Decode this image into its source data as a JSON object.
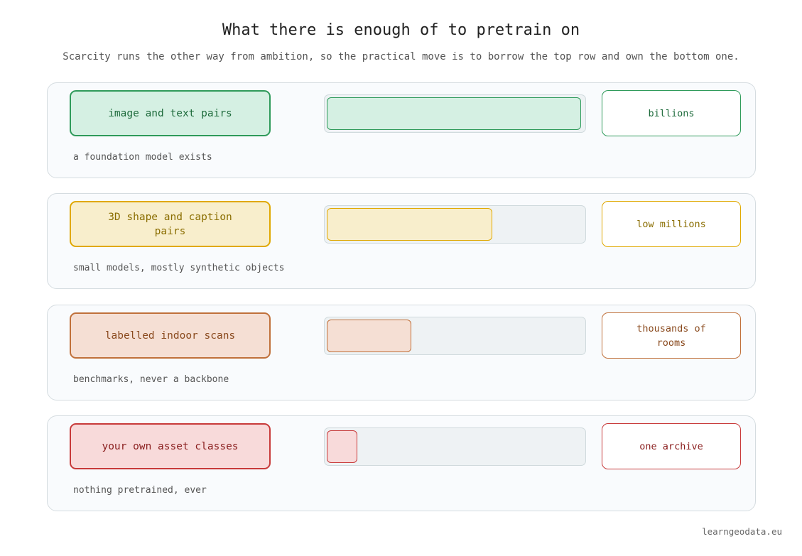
{
  "title": "What there is enough of to pretrain on",
  "subtitle": "Scarcity runs the other way from ambition, so the practical move is to borrow the top row and own the bottom one.",
  "rows": [
    {
      "label": "image and text pairs",
      "amount": "billions",
      "note": "a foundation model exists"
    },
    {
      "label": "3D shape and caption pairs",
      "amount": "low millions",
      "note": "small models, mostly synthetic objects"
    },
    {
      "label": "labelled indoor scans",
      "amount": "thousands of rooms",
      "note": "benchmarks, never a backbone"
    },
    {
      "label": "your own asset classes",
      "amount": "one archive",
      "note": "nothing pretrained, ever"
    }
  ],
  "footer": "learngeodata.eu"
}
